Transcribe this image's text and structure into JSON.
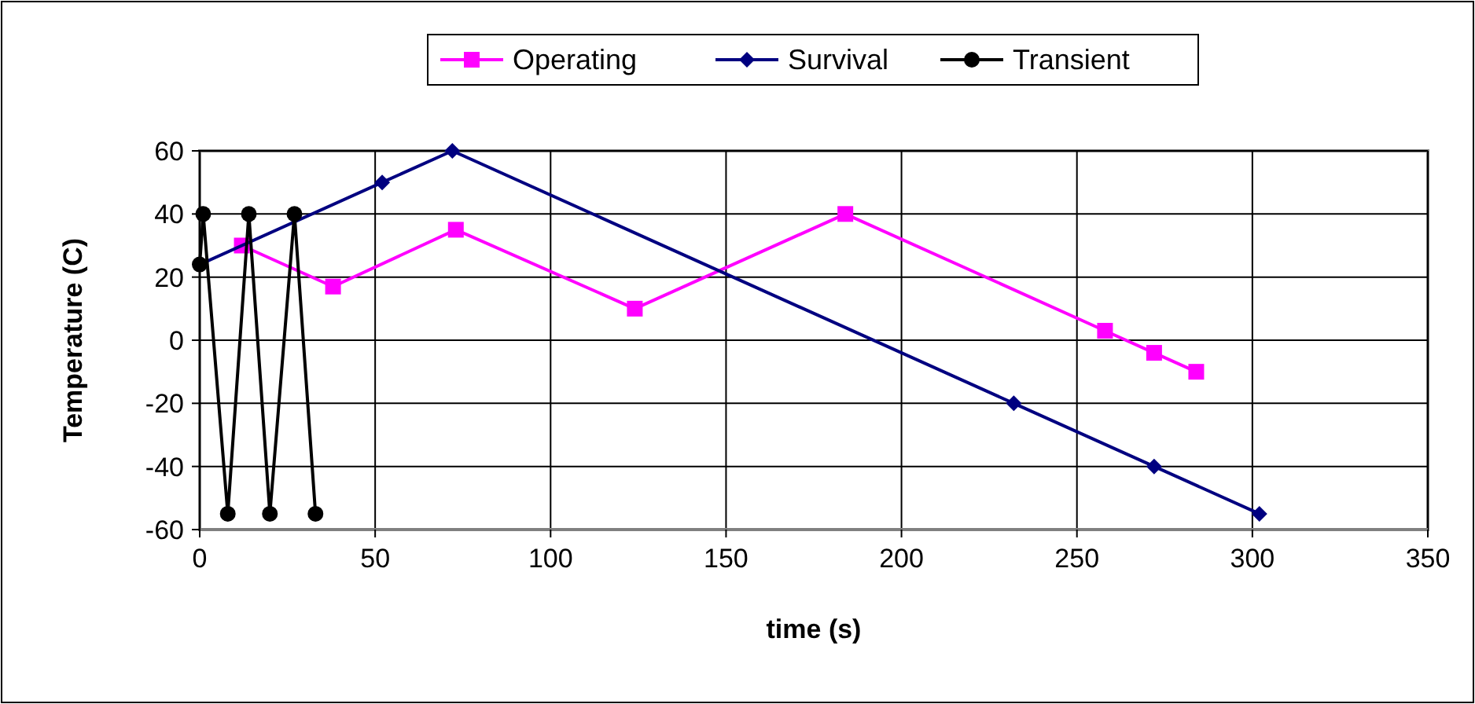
{
  "chart_data": {
    "type": "line",
    "xlabel": "time (s)",
    "ylabel": "Temperature (C)",
    "xlim": [
      0,
      350
    ],
    "xticks": [
      0,
      50,
      100,
      150,
      200,
      250,
      300,
      350
    ],
    "ylim": [
      -60,
      60
    ],
    "yticks": [
      -60,
      -40,
      -20,
      0,
      20,
      40,
      60
    ],
    "grid": true,
    "legend": "top",
    "series": [
      {
        "name": "Operating",
        "color": "#ff00ff",
        "marker": "square",
        "x": [
          12,
          38,
          73,
          124,
          184,
          258,
          272,
          284
        ],
        "values": [
          30,
          17,
          35,
          10,
          40,
          3,
          -4,
          -10
        ]
      },
      {
        "name": "Survival",
        "color": "#000080",
        "marker": "diamond",
        "x": [
          0,
          52,
          72,
          232,
          272,
          302
        ],
        "values": [
          24,
          50,
          60,
          -20,
          -40,
          -55
        ]
      },
      {
        "name": "Transient",
        "color": "#000000",
        "marker": "circle",
        "x": [
          0,
          1,
          8,
          14,
          20,
          27,
          33
        ],
        "values": [
          24,
          40,
          -55,
          40,
          -55,
          40,
          -55
        ]
      }
    ]
  }
}
